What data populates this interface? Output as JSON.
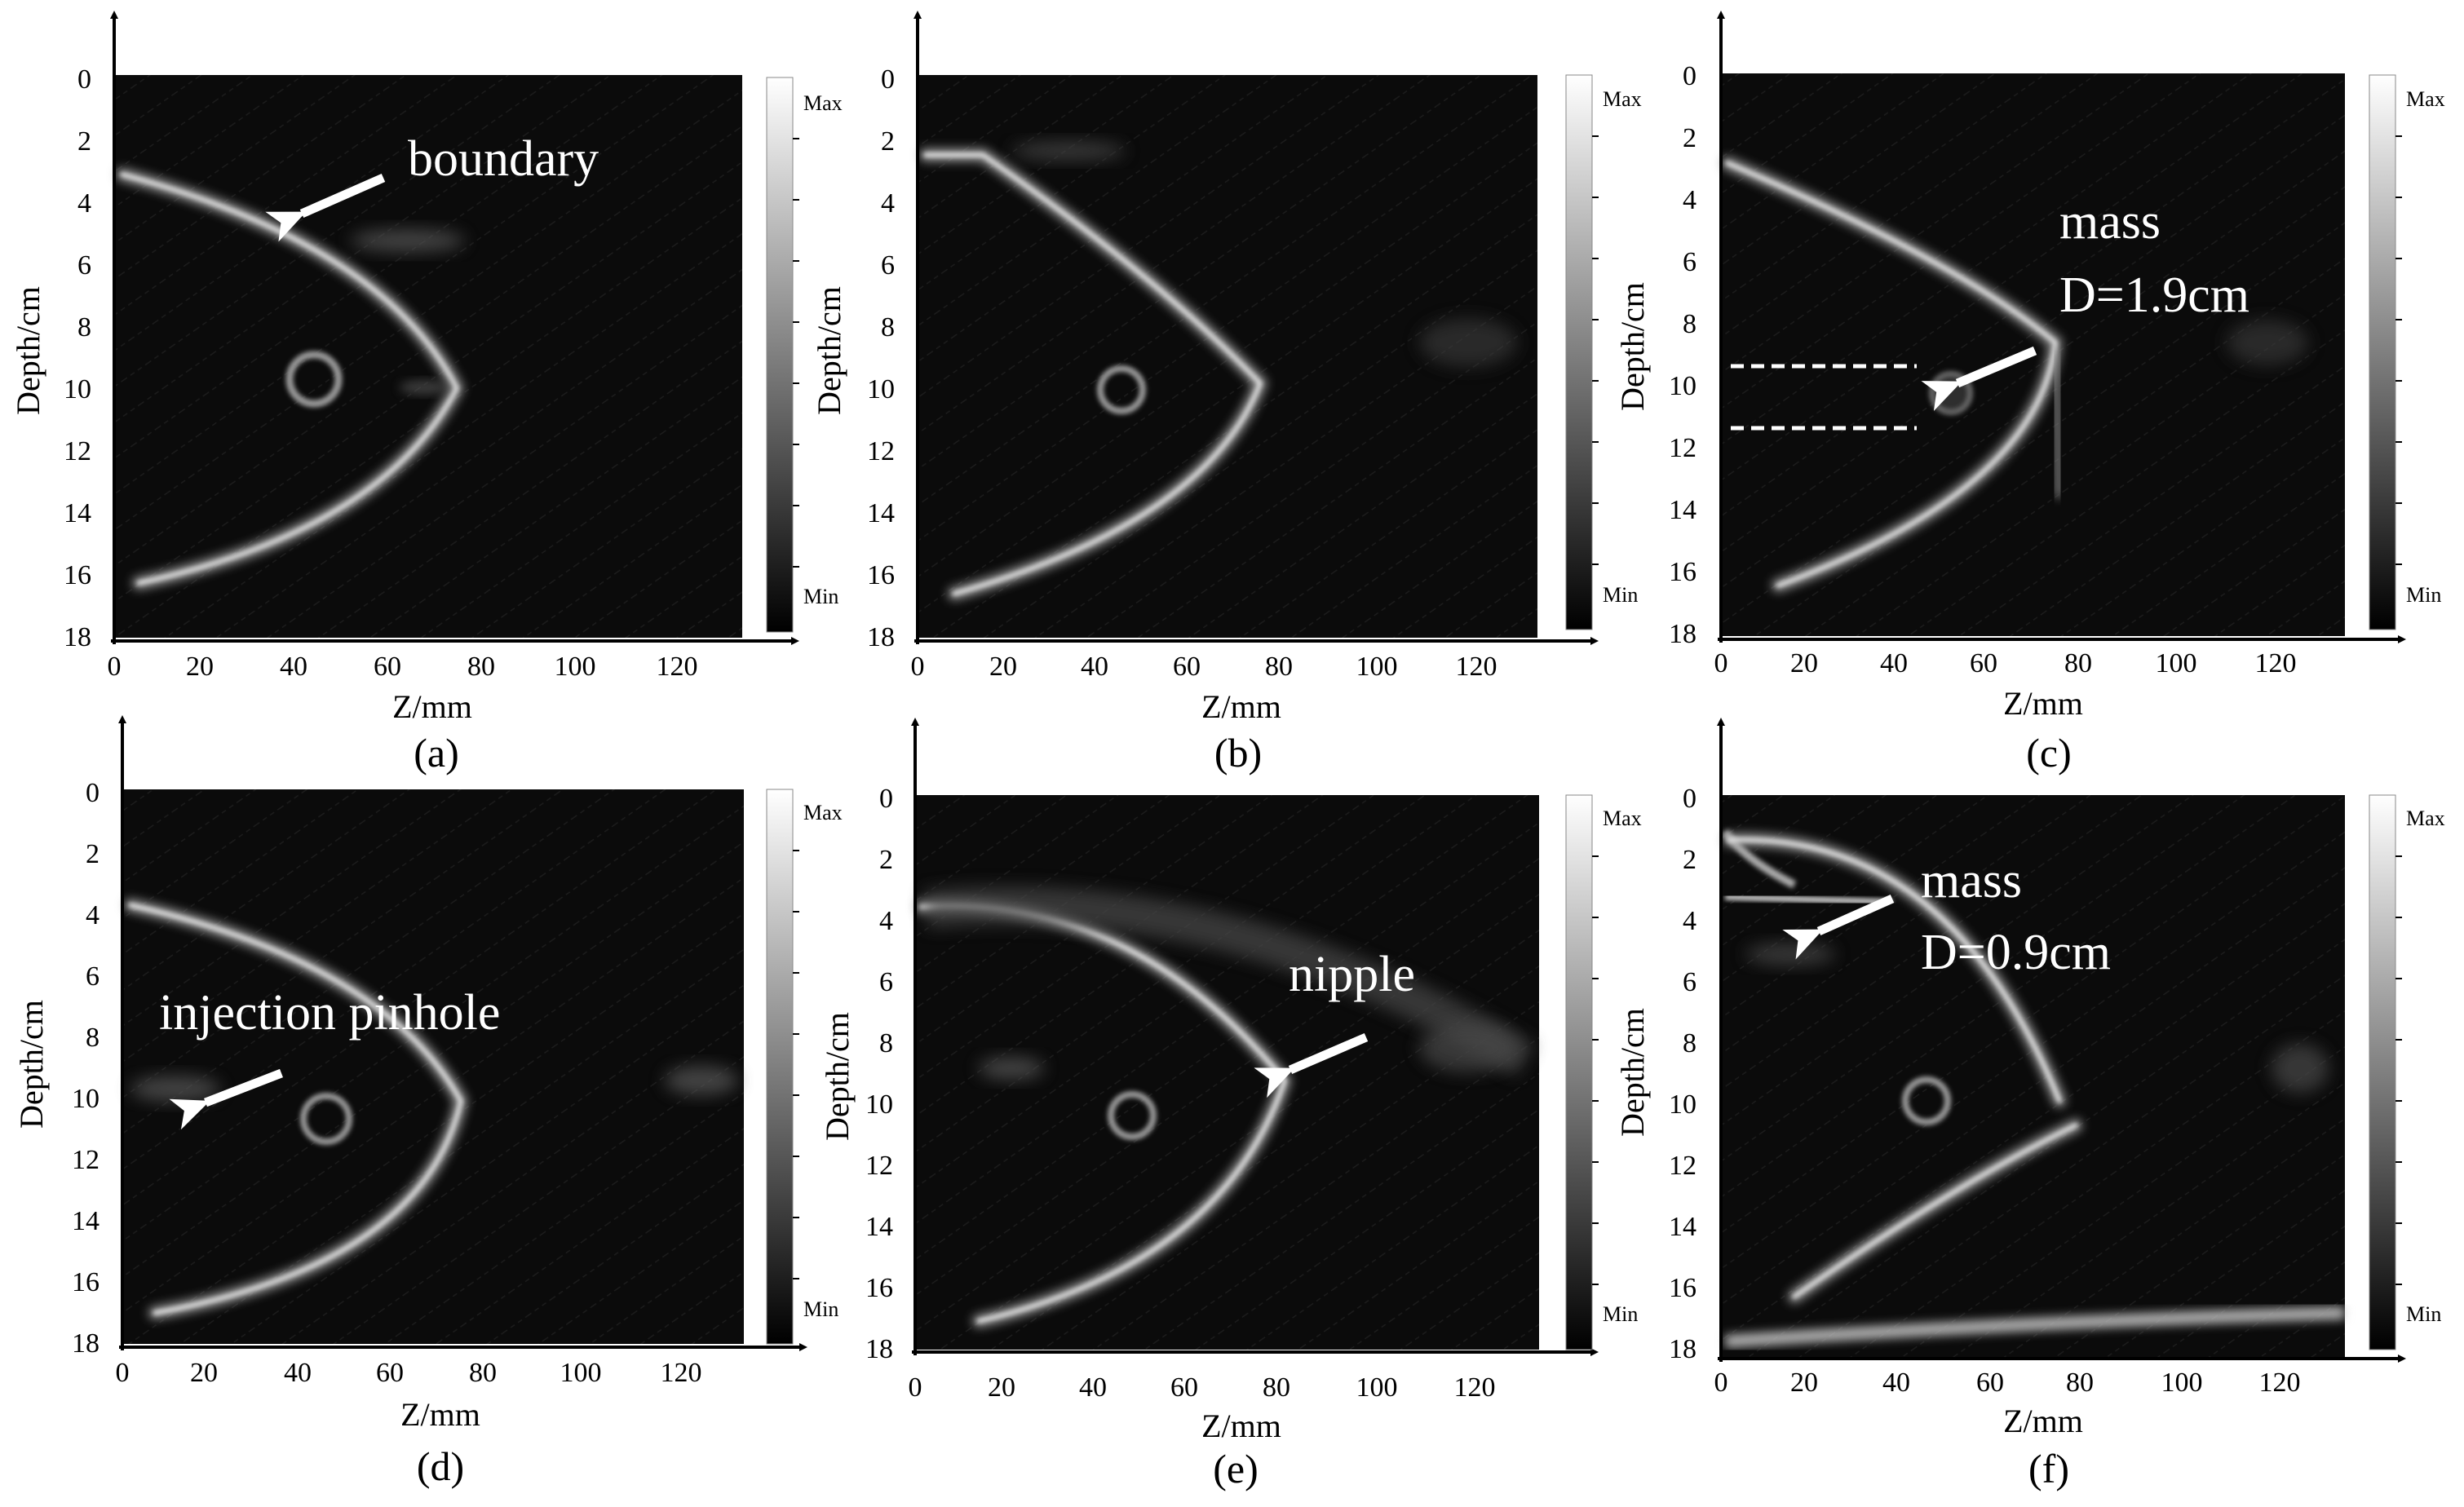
{
  "figure": {
    "panels": [
      {
        "id": "a",
        "caption": "(a)",
        "xlabel": "Z/mm",
        "ylabel": "Depth/cm",
        "colorbar": {
          "max_label": "Max",
          "min_label": "Min"
        },
        "annotations": [
          {
            "text": "boundary"
          }
        ]
      },
      {
        "id": "b",
        "caption": "(b)",
        "xlabel": "Z/mm",
        "ylabel": "Depth/cm",
        "colorbar": {
          "max_label": "Max",
          "min_label": "Min"
        },
        "annotations": []
      },
      {
        "id": "c",
        "caption": "(c)",
        "xlabel": "Z/mm",
        "ylabel": "Depth/cm",
        "colorbar": {
          "max_label": "Max",
          "min_label": "Min"
        },
        "annotations": [
          {
            "text": "mass"
          },
          {
            "text": "D=1.9cm"
          }
        ]
      },
      {
        "id": "d",
        "caption": "(d)",
        "xlabel": "Z/mm",
        "ylabel": "Depth/cm",
        "colorbar": {
          "max_label": "Max",
          "min_label": "Min"
        },
        "annotations": [
          {
            "text": "injection pinhole"
          }
        ]
      },
      {
        "id": "e",
        "caption": "(e)",
        "xlabel": "Z/mm",
        "ylabel": "Depth/cm",
        "colorbar": {
          "max_label": "Max",
          "min_label": "Min"
        },
        "annotations": [
          {
            "text": "nipple"
          }
        ]
      },
      {
        "id": "f",
        "caption": "(f)",
        "xlabel": "Z/mm",
        "ylabel": "Depth/cm",
        "colorbar": {
          "max_label": "Max",
          "min_label": "Min"
        },
        "annotations": [
          {
            "text": "mass"
          },
          {
            "text": "D=0.9cm"
          }
        ]
      }
    ],
    "axes": {
      "x_ticks": [
        "0",
        "20",
        "40",
        "60",
        "80",
        "100",
        "120"
      ],
      "y_ticks": [
        "0",
        "2",
        "4",
        "6",
        "8",
        "10",
        "12",
        "14",
        "16",
        "18"
      ]
    }
  }
}
